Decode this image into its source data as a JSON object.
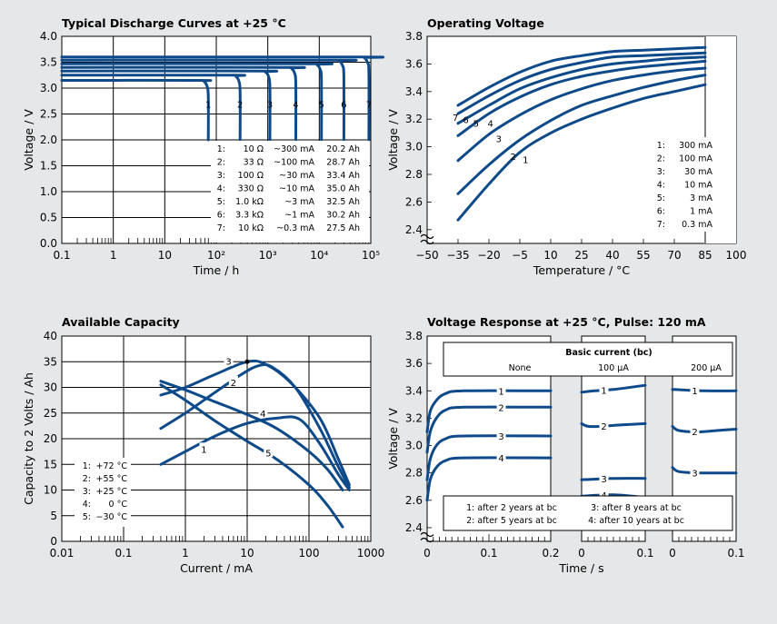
{
  "chart_data": [
    {
      "type": "line",
      "title": "Typical Discharge Curves at +25 °C",
      "xlabel": "Time / h",
      "ylabel": "Voltage / V",
      "x_scale": "log",
      "xlim": [
        0.1,
        100000
      ],
      "ylim": [
        0.0,
        4.0
      ],
      "xtick_labels": [
        "0.1",
        "1",
        "10",
        "10²",
        "10³",
        "10⁴",
        "10⁵"
      ],
      "ytick_labels": [
        "0.0",
        "0.5",
        "1.0",
        "1.5",
        "2.0",
        "2.5",
        "3.0",
        "3.5",
        "4.0"
      ],
      "legend_rows": [
        [
          "1:",
          "10 Ω",
          "~300 mA",
          "20.2 Ah"
        ],
        [
          "2:",
          "33 Ω",
          "~100 mA",
          "28.7 Ah"
        ],
        [
          "3:",
          "100 Ω",
          "~30 mA",
          "33.4 Ah"
        ],
        [
          "4:",
          "330 Ω",
          "~10 mA",
          "35.0 Ah"
        ],
        [
          "5:",
          "1.0 kΩ",
          "~3 mA",
          "32.5 Ah"
        ],
        [
          "6:",
          "3.3 kΩ",
          "~1 mA",
          "30.2 Ah"
        ],
        [
          "7:",
          "10 kΩ",
          "~0.3 mA",
          "27.5 Ah"
        ]
      ],
      "series": [
        {
          "name": "1",
          "plateau_v": 3.15,
          "end_time_h": 70
        },
        {
          "name": "2",
          "plateau_v": 3.25,
          "end_time_h": 290
        },
        {
          "name": "3",
          "plateau_v": 3.33,
          "end_time_h": 1100
        },
        {
          "name": "4",
          "plateau_v": 3.4,
          "end_time_h": 3500
        },
        {
          "name": "5",
          "plateau_v": 3.47,
          "end_time_h": 11000
        },
        {
          "name": "6",
          "plateau_v": 3.54,
          "end_time_h": 30000
        },
        {
          "name": "7",
          "plateau_v": 3.6,
          "end_time_h": 92000
        }
      ]
    },
    {
      "type": "line",
      "title": "Operating Voltage",
      "xlabel": "Temperature / °C",
      "ylabel": "Voltage / V",
      "xlim": [
        -50,
        100
      ],
      "ylim": [
        2.4,
        3.8
      ],
      "xtick_labels": [
        "−50",
        "−35",
        "−20",
        "−5",
        "10",
        "25",
        "40",
        "55",
        "70",
        "85",
        "100"
      ],
      "ytick_labels": [
        "2.4",
        "2.6",
        "2.8",
        "3.0",
        "3.2",
        "3.4",
        "3.6",
        "3.8"
      ],
      "legend_rows": [
        [
          "1:",
          "300 mA"
        ],
        [
          "2:",
          "100 mA"
        ],
        [
          "3:",
          "30 mA"
        ],
        [
          "4:",
          "10 mA"
        ],
        [
          "5:",
          "3 mA"
        ],
        [
          "6:",
          "1 mA"
        ],
        [
          "7:",
          "0.3 mA"
        ]
      ],
      "x": [
        -35,
        -20,
        -5,
        10,
        25,
        40,
        55,
        70,
        85
      ],
      "series": [
        {
          "name": "1",
          "values": [
            2.47,
            2.73,
            2.96,
            3.1,
            3.2,
            3.28,
            3.35,
            3.4,
            3.45
          ]
        },
        {
          "name": "2",
          "values": [
            2.66,
            2.87,
            3.05,
            3.19,
            3.3,
            3.37,
            3.43,
            3.48,
            3.52
          ]
        },
        {
          "name": "3",
          "values": [
            2.9,
            3.09,
            3.23,
            3.34,
            3.42,
            3.48,
            3.52,
            3.55,
            3.57
          ]
        },
        {
          "name": "4",
          "values": [
            3.08,
            3.24,
            3.36,
            3.45,
            3.51,
            3.55,
            3.58,
            3.6,
            3.62
          ]
        },
        {
          "name": "5",
          "values": [
            3.17,
            3.3,
            3.42,
            3.5,
            3.56,
            3.6,
            3.62,
            3.64,
            3.65
          ]
        },
        {
          "name": "6",
          "values": [
            3.24,
            3.37,
            3.48,
            3.56,
            3.61,
            3.65,
            3.66,
            3.67,
            3.68
          ]
        },
        {
          "name": "7",
          "values": [
            3.3,
            3.43,
            3.54,
            3.62,
            3.66,
            3.69,
            3.7,
            3.71,
            3.72
          ]
        }
      ]
    },
    {
      "type": "line",
      "title": "Available Capacity",
      "xlabel": "Current / mA",
      "ylabel": "Capacity to 2 Volts / Ah",
      "x_scale": "log",
      "xlim": [
        0.01,
        1000
      ],
      "ylim": [
        0,
        40
      ],
      "xtick_labels": [
        "0.01",
        "0.1",
        "1",
        "10",
        "100",
        "1000"
      ],
      "ytick_labels": [
        "0",
        "5",
        "10",
        "15",
        "20",
        "25",
        "30",
        "35",
        "40"
      ],
      "legend_rows": [
        [
          "1:",
          "+72 °C"
        ],
        [
          "2:",
          "+55 °C"
        ],
        [
          "3:",
          "+25 °C"
        ],
        [
          "4:",
          "0 °C"
        ],
        [
          "5:",
          "−30 °C"
        ]
      ],
      "series": [
        {
          "name": "1",
          "points": [
            [
              0.4,
              15
            ],
            [
              1,
              17.5
            ],
            [
              3,
              20.5
            ],
            [
              10,
              23
            ],
            [
              30,
              24
            ],
            [
              70,
              23.8
            ],
            [
              150,
              19
            ],
            [
              300,
              13
            ],
            [
              450,
              10
            ]
          ]
        },
        {
          "name": "2",
          "points": [
            [
              0.4,
              22
            ],
            [
              1,
              25
            ],
            [
              3,
              29
            ],
            [
              8,
              32.5
            ],
            [
              15,
              34.2
            ],
            [
              25,
              34
            ],
            [
              60,
              30
            ],
            [
              150,
              22
            ],
            [
              300,
              14.5
            ],
            [
              450,
              10.5
            ]
          ]
        },
        {
          "name": "3",
          "points": [
            [
              0.4,
              28.5
            ],
            [
              1,
              30
            ],
            [
              3,
              32.5
            ],
            [
              10,
              35
            ],
            [
              20,
              34.5
            ],
            [
              50,
              31
            ],
            [
              150,
              24
            ],
            [
              300,
              16
            ],
            [
              450,
              11
            ]
          ]
        },
        {
          "name": "4",
          "points": [
            [
              0.4,
              31.2
            ],
            [
              1,
              29.5
            ],
            [
              3,
              27.2
            ],
            [
              10,
              24.7
            ],
            [
              30,
              22
            ],
            [
              100,
              17.5
            ],
            [
              200,
              14
            ],
            [
              350,
              10
            ]
          ]
        },
        {
          "name": "5",
          "points": [
            [
              0.4,
              30.5
            ],
            [
              1,
              27.5
            ],
            [
              3,
              23.5
            ],
            [
              10,
              19.5
            ],
            [
              30,
              16
            ],
            [
              100,
              11
            ],
            [
              200,
              7
            ],
            [
              350,
              2.8
            ]
          ]
        }
      ]
    },
    {
      "type": "line",
      "title": "Voltage Response at +25 °C, Pulse: 120 mA",
      "xlabel": "Time / s",
      "ylabel": "Voltage / V",
      "ylim": [
        2.4,
        3.8
      ],
      "ytick_labels": [
        "2.4",
        "2.6",
        "2.8",
        "3.0",
        "3.2",
        "3.4",
        "3.6",
        "3.8"
      ],
      "panel_header": "Basic current (bc)",
      "panels": [
        {
          "label": "None",
          "xlim": [
            0,
            0.2
          ],
          "xtick_labels": [
            "0",
            "0.1",
            "0.2"
          ],
          "series": [
            {
              "name": "1",
              "values": [
                [
                  0,
                  3.1
                ],
                [
                  0.005,
                  3.25
                ],
                [
                  0.015,
                  3.33
                ],
                [
                  0.03,
                  3.38
                ],
                [
                  0.06,
                  3.4
                ],
                [
                  0.2,
                  3.4
                ]
              ]
            },
            {
              "name": "2",
              "values": [
                [
                  0,
                  2.95
                ],
                [
                  0.005,
                  3.1
                ],
                [
                  0.015,
                  3.2
                ],
                [
                  0.03,
                  3.26
                ],
                [
                  0.06,
                  3.28
                ],
                [
                  0.2,
                  3.28
                ]
              ]
            },
            {
              "name": "3",
              "values": [
                [
                  0,
                  2.75
                ],
                [
                  0.005,
                  2.9
                ],
                [
                  0.015,
                  3.0
                ],
                [
                  0.03,
                  3.05
                ],
                [
                  0.06,
                  3.07
                ],
                [
                  0.2,
                  3.07
                ]
              ]
            },
            {
              "name": "4",
              "values": [
                [
                  0,
                  2.6
                ],
                [
                  0.005,
                  2.75
                ],
                [
                  0.015,
                  2.84
                ],
                [
                  0.03,
                  2.89
                ],
                [
                  0.06,
                  2.91
                ],
                [
                  0.2,
                  2.91
                ]
              ]
            }
          ]
        },
        {
          "label": "100 µA",
          "xlim": [
            0,
            0.1
          ],
          "xtick_labels": [
            "0",
            "0.1"
          ],
          "series": [
            {
              "name": "1",
              "values": [
                [
                  0,
                  3.39
                ],
                [
                  0.02,
                  3.4
                ],
                [
                  0.05,
                  3.41
                ],
                [
                  0.1,
                  3.44
                ]
              ]
            },
            {
              "name": "2",
              "values": [
                [
                  0,
                  3.16
                ],
                [
                  0.01,
                  3.14
                ],
                [
                  0.03,
                  3.14
                ],
                [
                  0.06,
                  3.15
                ],
                [
                  0.1,
                  3.16
                ]
              ]
            },
            {
              "name": "3",
              "values": [
                [
                  0,
                  2.75
                ],
                [
                  0.05,
                  2.76
                ],
                [
                  0.1,
                  2.76
                ]
              ]
            },
            {
              "name": "4",
              "values": [
                [
                  0,
                  2.63
                ],
                [
                  0.05,
                  2.64
                ],
                [
                  0.1,
                  2.62
                ]
              ]
            }
          ]
        },
        {
          "label": "200 µA",
          "xlim": [
            0,
            0.1
          ],
          "xtick_labels": [
            "0",
            "0.1"
          ],
          "series": [
            {
              "name": "1",
              "values": [
                [
                  0,
                  3.41
                ],
                [
                  0.05,
                  3.4
                ],
                [
                  0.1,
                  3.4
                ]
              ]
            },
            {
              "name": "2",
              "values": [
                [
                  0,
                  3.14
                ],
                [
                  0.01,
                  3.11
                ],
                [
                  0.04,
                  3.1
                ],
                [
                  0.07,
                  3.11
                ],
                [
                  0.1,
                  3.12
                ]
              ]
            },
            {
              "name": "3",
              "values": [
                [
                  0,
                  2.84
                ],
                [
                  0.01,
                  2.81
                ],
                [
                  0.04,
                  2.8
                ],
                [
                  0.1,
                  2.8
                ]
              ]
            }
          ]
        }
      ],
      "legend_rows": [
        [
          "1: after 2 years at bc",
          "3: after 8 years at bc"
        ],
        [
          "2: after 5 years at bc",
          "4: after 10 years at bc"
        ]
      ]
    }
  ]
}
